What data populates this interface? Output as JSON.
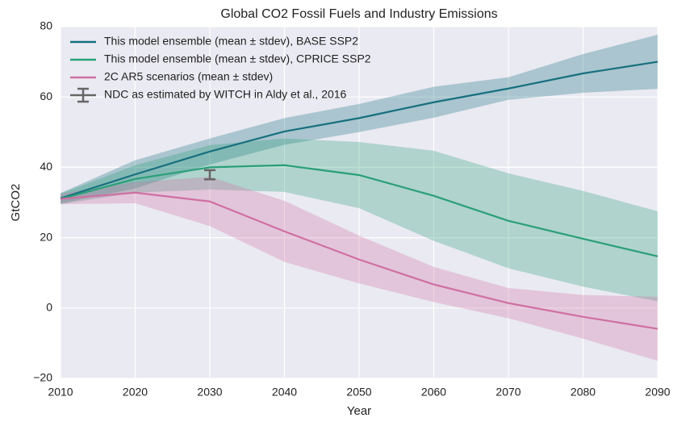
{
  "chart_data": {
    "type": "line",
    "title": "Global CO2 Fossil Fuels and Industry Emissions",
    "x_label": "Year",
    "y_label": "GtCO2",
    "x": [
      2010,
      2020,
      2030,
      2040,
      2050,
      2060,
      2070,
      2080,
      2090
    ],
    "series": [
      {
        "name": "This model ensemble (mean ± stdev), BASE SSP2",
        "color": "#17707f",
        "values": [
          31.2,
          38,
          44.5,
          50.2,
          54,
          58.5,
          62.4,
          66.7,
          70
        ],
        "stdev": [
          1.5,
          4,
          3.7,
          3.8,
          4,
          4.4,
          3.2,
          5.5,
          7.7
        ]
      },
      {
        "name": "This model ensemble (mean ± stdev), CPRICE SSP2",
        "color": "#2a9f78",
        "values": [
          31,
          36.7,
          40,
          40.6,
          37.8,
          31.9,
          24.8,
          19.7,
          14.7
        ],
        "stdev": [
          1.5,
          3.9,
          6.3,
          7.6,
          9.4,
          12.8,
          13.5,
          13.6,
          12.8
        ]
      },
      {
        "name": "2C AR5 scenarios (mean ± stdev)",
        "color": "#cf6fa3",
        "values": [
          31,
          32.8,
          30.3,
          21.8,
          13.8,
          6.7,
          1.4,
          -2.5,
          -5.9
        ],
        "stdev": [
          1.5,
          3,
          7,
          8.7,
          6.8,
          5,
          4.3,
          6.2,
          9.1
        ]
      }
    ],
    "ndc": {
      "name": "NDC as estimated by WITCH in Aldy et al., 2016",
      "color": "#666666",
      "x": 2030,
      "value": 37.9,
      "error": 1.3
    },
    "xlim": [
      2010,
      2090
    ],
    "xticks": [
      2010,
      2020,
      2030,
      2040,
      2050,
      2060,
      2070,
      2080,
      2090
    ],
    "ylim": [
      -20,
      80
    ],
    "yticks": [
      {
        "value": -20,
        "label": "−20"
      },
      0,
      20,
      40,
      60,
      80
    ],
    "grid": true,
    "legend": "upper-left"
  }
}
